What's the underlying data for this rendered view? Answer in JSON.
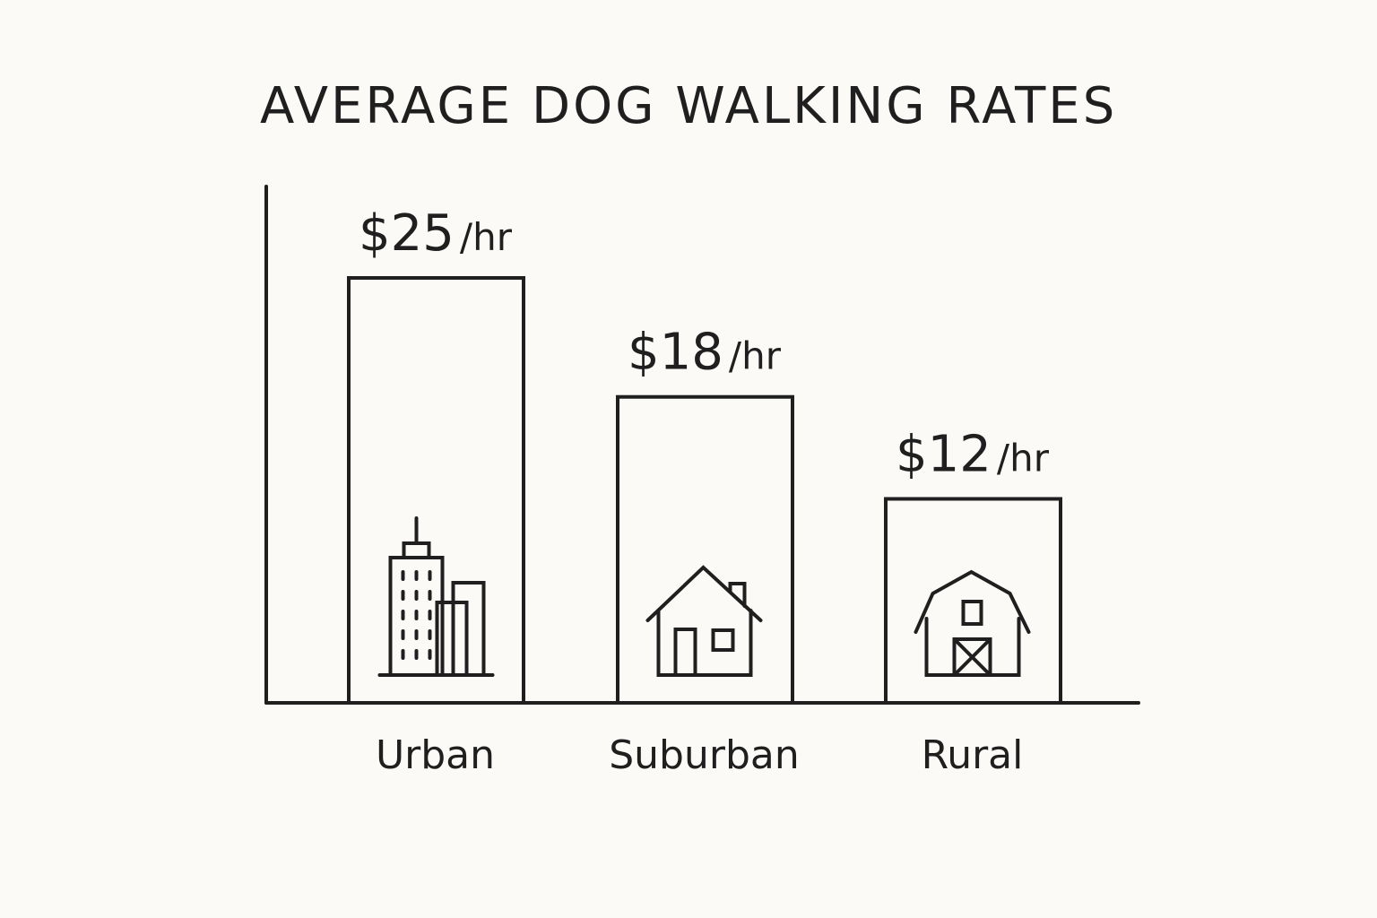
{
  "chart_data": {
    "type": "bar",
    "title": "AVERAGE DOG WALKING RATES",
    "categories": [
      "Urban",
      "Suburban",
      "Rural"
    ],
    "values": [
      25,
      18,
      12
    ],
    "value_labels": [
      {
        "amount": "$25",
        "unit": "/hr"
      },
      {
        "amount": "$18",
        "unit": "/hr"
      },
      {
        "amount": "$12",
        "unit": "/hr"
      }
    ],
    "icons": [
      "city-buildings-icon",
      "house-icon",
      "barn-icon"
    ],
    "xlabel": "",
    "ylabel": "",
    "grid": false,
    "legend": "none"
  },
  "colors": {
    "ink": "#1f1f1f",
    "background": "#fbfaf6"
  }
}
